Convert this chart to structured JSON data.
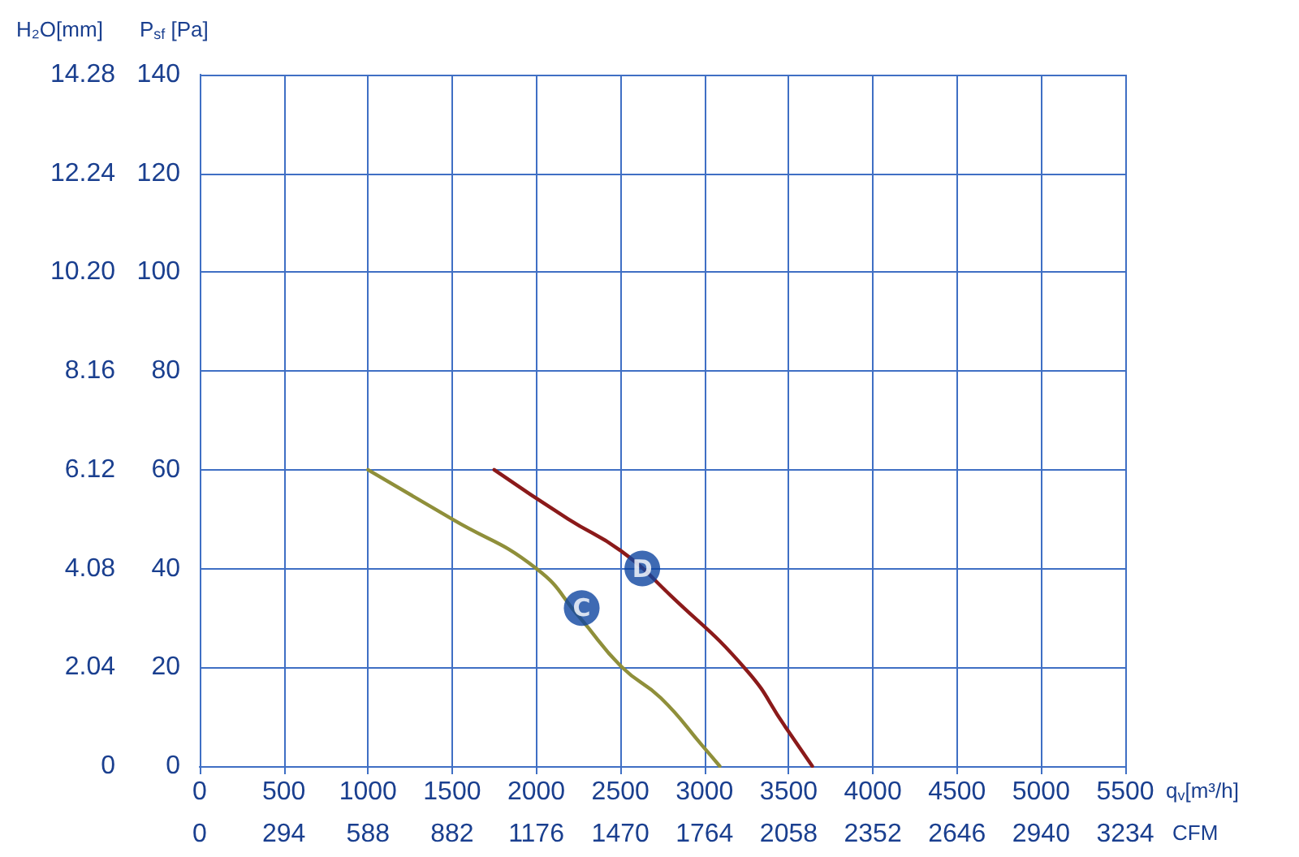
{
  "chart_data": {
    "type": "line",
    "xlabel": "q$_{v}$[m³/h]",
    "ylabel": "P$_{sf}$ [Pa]",
    "y2label": "H₂O[mm]",
    "x2label": "CFM",
    "xlim": [
      0,
      5500
    ],
    "xticks": [
      0,
      500,
      1000,
      1500,
      2000,
      2500,
      3000,
      3500,
      4000,
      4500,
      5000,
      5500
    ],
    "x2lim": [
      0,
      3234
    ],
    "x2ticks": [
      0,
      294,
      588,
      882,
      1176,
      1470,
      1764,
      2058,
      2352,
      2646,
      2940,
      3234
    ],
    "ylim": [
      0,
      140
    ],
    "yticks": [
      0,
      20,
      40,
      60,
      80,
      100,
      120,
      140
    ],
    "y2lim": [
      0,
      14.28
    ],
    "y2ticks": [
      0,
      2.04,
      4.08,
      6.12,
      8.16,
      {
        "value": 10.2,
        "label": "10.20"
      },
      12.24,
      14.28
    ],
    "grid": true,
    "marker": "none",
    "line_style": "solid",
    "series": [
      {
        "color": "#8f8f3a",
        "x": [
          1000,
          1500,
          2000,
          2260,
          2510,
          2740,
          2990,
          3090
        ],
        "values": [
          60,
          50,
          40,
          30,
          20,
          13.8,
          4,
          0
        ]
      },
      {
        "color": "#8b1a1a",
        "x": [
          1750,
          2190,
          2510,
          2800,
          3250,
          3475,
          3640
        ],
        "values": [
          60,
          50,
          43.4,
          34.5,
          19.4,
          8.2,
          0
        ]
      }
    ],
    "annotations": [
      {
        "text": "C",
        "x": 2270,
        "y": 32
      },
      {
        "text": "D",
        "x": 2630,
        "y": 40
      }
    ]
  }
}
